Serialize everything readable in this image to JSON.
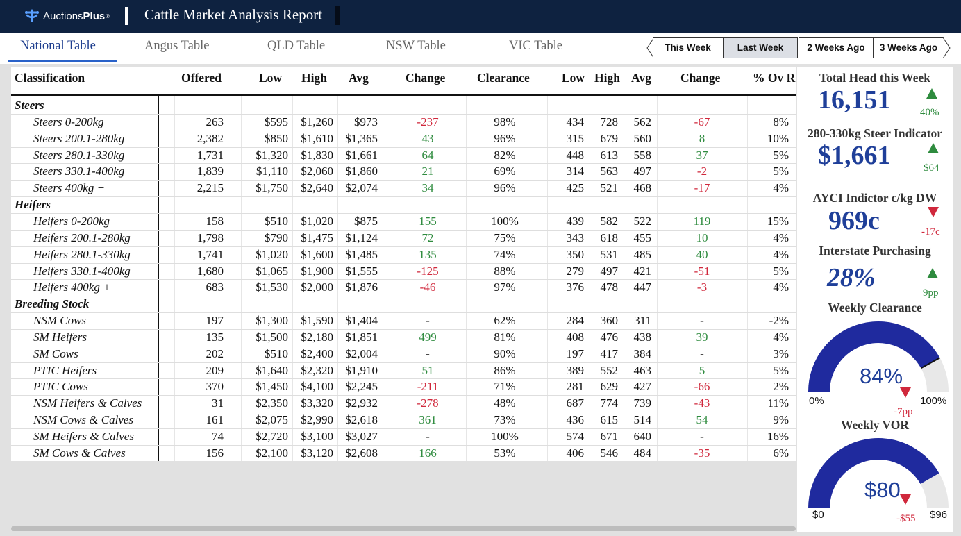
{
  "header": {
    "brand_pre": "Auctions",
    "brand_bold": "Plus",
    "brand_reg": "®",
    "report_title": "Cattle Market Analysis Report"
  },
  "tabs": [
    {
      "label": "National Table",
      "active": true
    },
    {
      "label": "Angus Table",
      "active": false
    },
    {
      "label": "QLD Table",
      "active": false
    },
    {
      "label": "NSW Table",
      "active": false
    },
    {
      "label": "VIC Table",
      "active": false
    }
  ],
  "week_buttons": [
    {
      "label": "This Week",
      "selected": false
    },
    {
      "label": "Last Week",
      "selected": true
    },
    {
      "label": "2 Weeks Ago",
      "selected": false
    },
    {
      "label": "3 Weeks Ago",
      "selected": false
    }
  ],
  "table": {
    "headers": [
      "Classification",
      "Offered",
      "Low",
      "High",
      "Avg",
      "Change",
      "Clearance",
      "Low",
      "High",
      "Avg",
      "Change",
      "% Ov R"
    ],
    "rows": [
      {
        "group": "Steers"
      },
      {
        "label": "Steers 0-200kg",
        "offered": "263",
        "low": "$595",
        "high": "$1,260",
        "avg": "$973",
        "change": "-237",
        "clearance": "98%",
        "low2": "434",
        "high2": "728",
        "avg2": "562",
        "change2": "-67",
        "ovr": "8%"
      },
      {
        "label": "Steers 200.1-280kg",
        "offered": "2,382",
        "low": "$850",
        "high": "$1,610",
        "avg": "$1,365",
        "change": "43",
        "clearance": "96%",
        "low2": "315",
        "high2": "679",
        "avg2": "560",
        "change2": "8",
        "ovr": "10%"
      },
      {
        "label": "Steers 280.1-330kg",
        "offered": "1,731",
        "low": "$1,320",
        "high": "$1,830",
        "avg": "$1,661",
        "change": "64",
        "clearance": "82%",
        "low2": "448",
        "high2": "613",
        "avg2": "558",
        "change2": "37",
        "ovr": "5%"
      },
      {
        "label": "Steers 330.1-400kg",
        "offered": "1,839",
        "low": "$1,110",
        "high": "$2,060",
        "avg": "$1,860",
        "change": "21",
        "clearance": "69%",
        "low2": "314",
        "high2": "563",
        "avg2": "497",
        "change2": "-2",
        "ovr": "5%"
      },
      {
        "label": "Steers 400kg +",
        "offered": "2,215",
        "low": "$1,750",
        "high": "$2,640",
        "avg": "$2,074",
        "change": "34",
        "clearance": "96%",
        "low2": "425",
        "high2": "521",
        "avg2": "468",
        "change2": "-17",
        "ovr": "4%"
      },
      {
        "group": "Heifers"
      },
      {
        "label": "Heifers 0-200kg",
        "offered": "158",
        "low": "$510",
        "high": "$1,020",
        "avg": "$875",
        "change": "155",
        "clearance": "100%",
        "low2": "439",
        "high2": "582",
        "avg2": "522",
        "change2": "119",
        "ovr": "15%"
      },
      {
        "label": "Heifers 200.1-280kg",
        "offered": "1,798",
        "low": "$790",
        "high": "$1,475",
        "avg": "$1,124",
        "change": "72",
        "clearance": "75%",
        "low2": "343",
        "high2": "618",
        "avg2": "455",
        "change2": "10",
        "ovr": "4%"
      },
      {
        "label": "Heifers 280.1-330kg",
        "offered": "1,741",
        "low": "$1,020",
        "high": "$1,600",
        "avg": "$1,485",
        "change": "135",
        "clearance": "74%",
        "low2": "350",
        "high2": "531",
        "avg2": "485",
        "change2": "40",
        "ovr": "4%"
      },
      {
        "label": "Heifers 330.1-400kg",
        "offered": "1,680",
        "low": "$1,065",
        "high": "$1,900",
        "avg": "$1,555",
        "change": "-125",
        "clearance": "88%",
        "low2": "279",
        "high2": "497",
        "avg2": "421",
        "change2": "-51",
        "ovr": "5%"
      },
      {
        "label": "Heifers 400kg +",
        "offered": "683",
        "low": "$1,530",
        "high": "$2,000",
        "avg": "$1,876",
        "change": "-46",
        "clearance": "97%",
        "low2": "376",
        "high2": "478",
        "avg2": "447",
        "change2": "-3",
        "ovr": "4%"
      },
      {
        "group": "Breeding Stock"
      },
      {
        "label": "NSM Cows",
        "offered": "197",
        "low": "$1,300",
        "high": "$1,590",
        "avg": "$1,404",
        "change": "-",
        "clearance": "62%",
        "low2": "284",
        "high2": "360",
        "avg2": "311",
        "change2": "-",
        "ovr": "-2%"
      },
      {
        "label": "SM Heifers",
        "offered": "135",
        "low": "$1,500",
        "high": "$2,180",
        "avg": "$1,851",
        "change": "499",
        "clearance": "81%",
        "low2": "408",
        "high2": "476",
        "avg2": "438",
        "change2": "39",
        "ovr": "4%"
      },
      {
        "label": "SM Cows",
        "offered": "202",
        "low": "$510",
        "high": "$2,400",
        "avg": "$2,004",
        "change": "-",
        "clearance": "90%",
        "low2": "197",
        "high2": "417",
        "avg2": "384",
        "change2": "-",
        "ovr": "3%"
      },
      {
        "label": "PTIC Heifers",
        "offered": "209",
        "low": "$1,640",
        "high": "$2,320",
        "avg": "$1,910",
        "change": "51",
        "clearance": "86%",
        "low2": "389",
        "high2": "552",
        "avg2": "463",
        "change2": "5",
        "ovr": "5%"
      },
      {
        "label": "PTIC Cows",
        "offered": "370",
        "low": "$1,450",
        "high": "$4,100",
        "avg": "$2,245",
        "change": "-211",
        "clearance": "71%",
        "low2": "281",
        "high2": "629",
        "avg2": "427",
        "change2": "-66",
        "ovr": "2%"
      },
      {
        "label": "NSM Heifers & Calves",
        "offered": "31",
        "low": "$2,350",
        "high": "$3,320",
        "avg": "$2,932",
        "change": "-278",
        "clearance": "48%",
        "low2": "687",
        "high2": "774",
        "avg2": "739",
        "change2": "-43",
        "ovr": "11%"
      },
      {
        "label": "NSM Cows & Calves",
        "offered": "161",
        "low": "$2,075",
        "high": "$2,990",
        "avg": "$2,618",
        "change": "361",
        "clearance": "73%",
        "low2": "436",
        "high2": "615",
        "avg2": "514",
        "change2": "54",
        "ovr": "9%"
      },
      {
        "label": "SM Heifers & Calves",
        "offered": "74",
        "low": "$2,720",
        "high": "$3,100",
        "avg": "$3,027",
        "change": "-",
        "clearance": "100%",
        "low2": "574",
        "high2": "671",
        "avg2": "640",
        "change2": "-",
        "ovr": "16%"
      },
      {
        "label": "SM Cows & Calves",
        "offered": "156",
        "low": "$2,100",
        "high": "$3,120",
        "avg": "$2,608",
        "change": "166",
        "clearance": "53%",
        "low2": "406",
        "high2": "546",
        "avg2": "484",
        "change2": "-35",
        "ovr": "6%"
      }
    ]
  },
  "kpis": {
    "total_head": {
      "title": "Total Head this Week",
      "value": "16,151",
      "delta": "40%",
      "direction": "up"
    },
    "steer_indicator": {
      "title": "280-330kg Steer Indicator",
      "value": "$1,661",
      "delta": "$64",
      "direction": "up"
    },
    "ayci": {
      "title": "AYCI Indictor c/kg DW",
      "value": "969c",
      "delta": "-17c",
      "direction": "down"
    },
    "interstate": {
      "title": "Interstate Purchasing",
      "value": "28%",
      "delta": "9pp",
      "direction": "up"
    },
    "weekly_clearance": {
      "title": "Weekly Clearance",
      "value": "84%",
      "fraction": 0.84,
      "min_label": "0%",
      "max_label": "100%",
      "delta": "-7pp",
      "direction": "down"
    },
    "weekly_vor": {
      "title": "Weekly VOR",
      "value": "$80",
      "fraction": 0.8333,
      "min_label": "$0",
      "max_label": "$96",
      "delta": "-$55",
      "direction": "down"
    }
  },
  "colors": {
    "navy": "#0e2240",
    "accent": "#1f3f99",
    "positive": "#2e8b3e",
    "negative": "#d0283c",
    "gauge_track": "#e8e8e8"
  }
}
